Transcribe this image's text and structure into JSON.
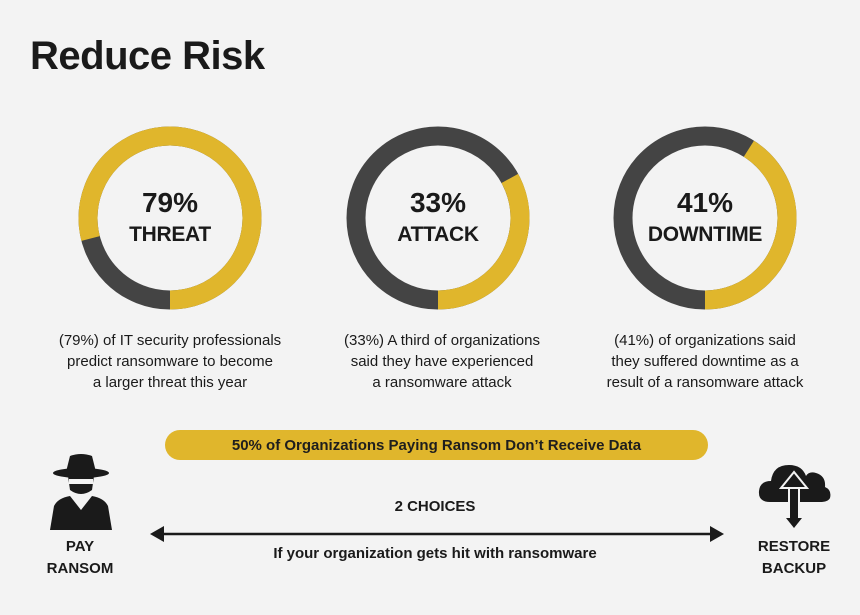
{
  "title": "Reduce Risk",
  "colors": {
    "gold": "#e0b62c",
    "dark": "#444444",
    "background": "#f3f3f3"
  },
  "stats": [
    {
      "percent": 79,
      "percent_label": "79%",
      "word": "THREAT",
      "description": [
        "(79%) of IT security professionals",
        "predict ransomware to become",
        "a larger threat this year"
      ]
    },
    {
      "percent": 33,
      "percent_label": "33%",
      "word": "ATTACK",
      "description": [
        "(33%) A third of organizations",
        "said they have experienced",
        "a ransomware attack"
      ]
    },
    {
      "percent": 41,
      "percent_label": "41%",
      "word": "DOWNTIME",
      "description": [
        "(41%) of organizations said",
        "they suffered downtime as a",
        "result of a ransomware attack"
      ]
    }
  ],
  "banner": "50% of Organizations Paying Ransom Don’t Receive Data",
  "choices": {
    "label": "2 CHOICES",
    "subtext": "If your organization gets hit with ransomware",
    "left": {
      "icon": "hacker-icon",
      "label_line1": "PAY",
      "label_line2": "RANSOM"
    },
    "right": {
      "icon": "cloud-upload-icon",
      "label_line1": "RESTORE",
      "label_line2": "BACKUP"
    }
  }
}
